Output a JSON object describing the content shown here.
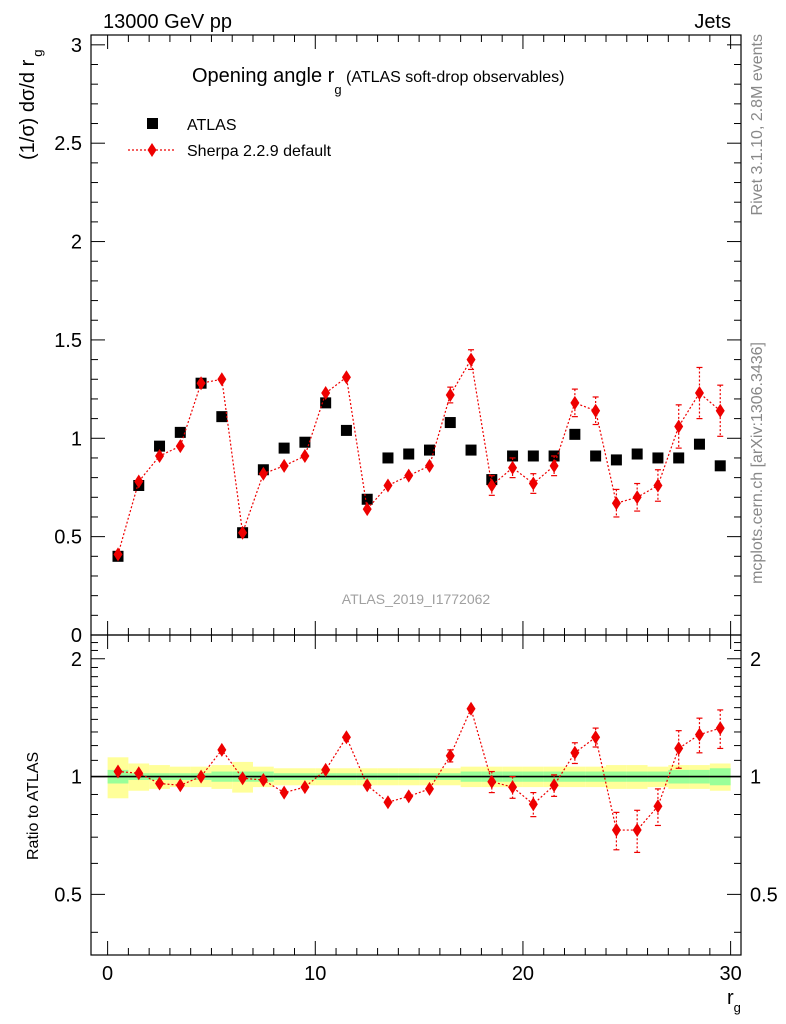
{
  "header": {
    "energy_label": "13000 GeV pp",
    "process_label": "Jets"
  },
  "side_labels": {
    "rivet": "Rivet 3.1.10,  2.8M events",
    "mcplots": "mcplots.cern.ch [arXiv:1306.3436]"
  },
  "watermark": "ATLAS_2019_I1772062",
  "chart_data": [
    {
      "type": "scatter",
      "title": "Opening angle r",
      "title_sub": "g",
      "title_suffix": " (ATLAS soft-drop observables)",
      "ylabel": "(1/σ) dσ/d r",
      "ylabel_sub": "g",
      "xlim": [
        -0.8,
        30.5
      ],
      "ylim": [
        0,
        3.05
      ],
      "yticks": [
        0.5,
        1,
        1.5,
        2,
        2.5,
        3
      ],
      "ytick_labels": [
        "0.5",
        "1",
        "1.5",
        "2",
        "2.5",
        "3"
      ],
      "ybottom_label": "0",
      "x": [
        0.5,
        1.5,
        2.5,
        3.5,
        4.5,
        5.5,
        6.5,
        7.5,
        8.5,
        9.5,
        10.5,
        11.5,
        12.5,
        13.5,
        14.5,
        15.5,
        16.5,
        17.5,
        18.5,
        19.5,
        20.5,
        21.5,
        22.5,
        23.5,
        24.5,
        25.5,
        26.5,
        27.5,
        28.5,
        29.5
      ],
      "legend": {
        "placement": "top-left",
        "entries": [
          "ATLAS",
          "Sherpa 2.2.9 default"
        ]
      },
      "series": [
        {
          "name": "ATLAS",
          "color": "#000000",
          "marker": "square",
          "values": [
            0.4,
            0.76,
            0.96,
            1.03,
            1.28,
            1.11,
            0.52,
            0.84,
            0.95,
            0.98,
            1.18,
            1.04,
            0.69,
            0.9,
            0.92,
            0.94,
            1.08,
            0.94,
            0.79,
            0.91,
            0.91,
            0.91,
            1.02,
            0.91,
            0.89,
            0.92,
            0.9,
            0.9,
            0.97,
            0.86
          ]
        },
        {
          "name": "Sherpa 2.2.9 default",
          "color": "#ee0000",
          "marker": "diamond",
          "values": [
            0.41,
            0.78,
            0.91,
            0.96,
            1.28,
            1.3,
            0.52,
            0.82,
            0.86,
            0.91,
            1.23,
            1.31,
            0.64,
            0.76,
            0.81,
            0.86,
            1.22,
            1.4,
            0.76,
            0.85,
            0.77,
            0.86,
            1.18,
            1.14,
            0.67,
            0.7,
            0.76,
            1.06,
            1.23,
            1.14
          ],
          "errors": [
            0.01,
            0.01,
            0.01,
            0.01,
            0.01,
            0.01,
            0.01,
            0.01,
            0.01,
            0.01,
            0.02,
            0.02,
            0.02,
            0.02,
            0.02,
            0.02,
            0.04,
            0.05,
            0.05,
            0.05,
            0.05,
            0.05,
            0.07,
            0.07,
            0.07,
            0.07,
            0.08,
            0.11,
            0.13,
            0.13
          ]
        }
      ]
    },
    {
      "type": "scatter",
      "ylabel": "Ratio to ATLAS",
      "xlabel": "r",
      "xlabel_sub": "g",
      "xlim": [
        -0.8,
        30.5
      ],
      "ylim": [
        0.35,
        2.3
      ],
      "yticks": [
        0.5,
        1,
        2
      ],
      "ytick_labels": [
        "0.5",
        "1",
        "2"
      ],
      "xticks": [
        0,
        10,
        20,
        30
      ],
      "xtick_labels": [
        "0",
        "10",
        "20",
        "30"
      ],
      "reference_line": 1,
      "band_inner": [
        0.04,
        0.02,
        0.02,
        0.02,
        0.02,
        0.03,
        0.03,
        0.03,
        0.02,
        0.02,
        0.02,
        0.02,
        0.02,
        0.02,
        0.02,
        0.02,
        0.02,
        0.03,
        0.03,
        0.03,
        0.03,
        0.03,
        0.03,
        0.03,
        0.03,
        0.03,
        0.03,
        0.04,
        0.04,
        0.05
      ],
      "band_outer": [
        0.12,
        0.08,
        0.07,
        0.06,
        0.06,
        0.07,
        0.09,
        0.06,
        0.05,
        0.05,
        0.05,
        0.05,
        0.05,
        0.05,
        0.05,
        0.05,
        0.05,
        0.06,
        0.06,
        0.06,
        0.06,
        0.06,
        0.06,
        0.06,
        0.07,
        0.07,
        0.06,
        0.07,
        0.07,
        0.08
      ],
      "band_colors": {
        "inner": "#99ff99",
        "outer": "#ffff99"
      },
      "series": [
        {
          "name": "Sherpa 2.2.9 default",
          "color": "#ee0000",
          "values": [
            1.03,
            1.02,
            0.96,
            0.95,
            1.0,
            1.17,
            0.99,
            0.98,
            0.91,
            0.94,
            1.04,
            1.26,
            0.95,
            0.86,
            0.89,
            0.93,
            1.13,
            1.49,
            0.97,
            0.94,
            0.85,
            0.95,
            1.15,
            1.26,
            0.73,
            0.73,
            0.84,
            1.18,
            1.28,
            1.33
          ],
          "errors": [
            0.01,
            0.01,
            0.01,
            0.01,
            0.01,
            0.01,
            0.02,
            0.01,
            0.01,
            0.01,
            0.02,
            0.02,
            0.03,
            0.03,
            0.03,
            0.03,
            0.04,
            0.04,
            0.06,
            0.06,
            0.06,
            0.06,
            0.07,
            0.07,
            0.08,
            0.09,
            0.09,
            0.13,
            0.13,
            0.15
          ]
        }
      ]
    }
  ]
}
